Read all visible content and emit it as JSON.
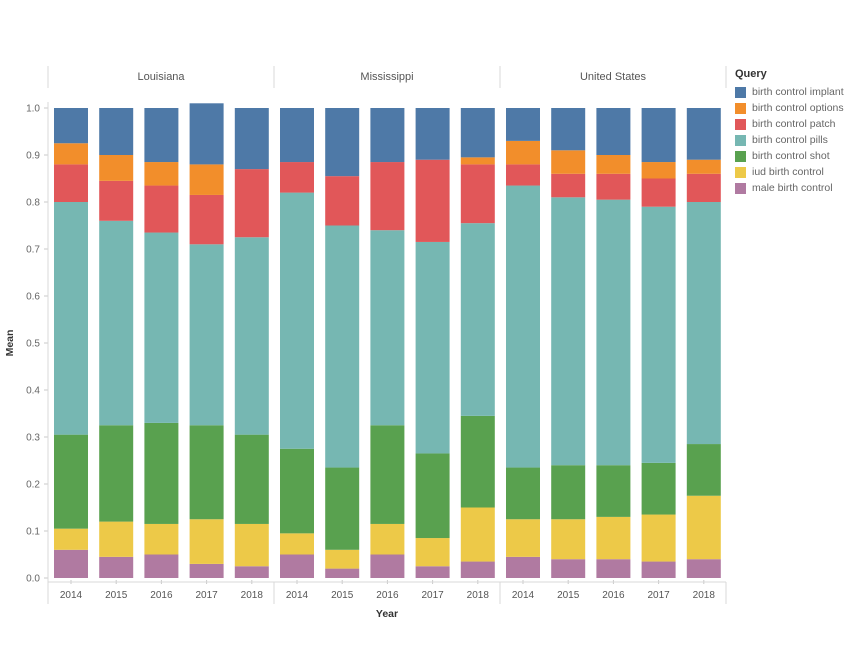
{
  "chart_data": {
    "type": "bar",
    "stacked": true,
    "ylabel": "Mean",
    "xlabel": "Year",
    "ylim": [
      0,
      1.0
    ],
    "y_ticks": [
      "0.0",
      "0.1",
      "0.2",
      "0.3",
      "0.4",
      "0.5",
      "0.6",
      "0.7",
      "0.8",
      "0.9",
      "1.0"
    ],
    "legend_title": "Query",
    "legend_position": "right",
    "categories": [
      "2014",
      "2015",
      "2016",
      "2017",
      "2018"
    ],
    "panels": [
      {
        "name": "Louisiana",
        "series": [
          {
            "name": "male birth control",
            "values": [
              0.06,
              0.045,
              0.05,
              0.03,
              0.025
            ]
          },
          {
            "name": "iud birth control",
            "values": [
              0.045,
              0.075,
              0.065,
              0.095,
              0.09
            ]
          },
          {
            "name": "birth control shot",
            "values": [
              0.2,
              0.205,
              0.215,
              0.2,
              0.19
            ]
          },
          {
            "name": "birth control pills",
            "values": [
              0.495,
              0.435,
              0.405,
              0.385,
              0.42
            ]
          },
          {
            "name": "birth control patch",
            "values": [
              0.08,
              0.085,
              0.1,
              0.105,
              0.145
            ]
          },
          {
            "name": "birth control options",
            "values": [
              0.045,
              0.055,
              0.05,
              0.065,
              0.0
            ]
          },
          {
            "name": "birth control implant",
            "values": [
              0.075,
              0.1,
              0.115,
              0.13,
              0.13
            ]
          }
        ]
      },
      {
        "name": "Mississippi",
        "series": [
          {
            "name": "male birth control",
            "values": [
              0.05,
              0.02,
              0.05,
              0.025,
              0.035
            ]
          },
          {
            "name": "iud birth control",
            "values": [
              0.045,
              0.04,
              0.065,
              0.06,
              0.115
            ]
          },
          {
            "name": "birth control shot",
            "values": [
              0.18,
              0.175,
              0.21,
              0.18,
              0.195
            ]
          },
          {
            "name": "birth control pills",
            "values": [
              0.545,
              0.515,
              0.415,
              0.45,
              0.41
            ]
          },
          {
            "name": "birth control patch",
            "values": [
              0.065,
              0.105,
              0.145,
              0.175,
              0.125
            ]
          },
          {
            "name": "birth control options",
            "values": [
              0.0,
              0.0,
              0.0,
              0.0,
              0.015
            ]
          },
          {
            "name": "birth control implant",
            "values": [
              0.115,
              0.145,
              0.115,
              0.11,
              0.105
            ]
          }
        ]
      },
      {
        "name": "United States",
        "series": [
          {
            "name": "male birth control",
            "values": [
              0.045,
              0.04,
              0.04,
              0.035,
              0.04
            ]
          },
          {
            "name": "iud birth control",
            "values": [
              0.08,
              0.085,
              0.09,
              0.1,
              0.135
            ]
          },
          {
            "name": "birth control shot",
            "values": [
              0.11,
              0.115,
              0.11,
              0.11,
              0.11
            ]
          },
          {
            "name": "birth control pills",
            "values": [
              0.6,
              0.57,
              0.565,
              0.545,
              0.515
            ]
          },
          {
            "name": "birth control patch",
            "values": [
              0.045,
              0.05,
              0.055,
              0.06,
              0.06
            ]
          },
          {
            "name": "birth control options",
            "values": [
              0.05,
              0.05,
              0.04,
              0.035,
              0.03
            ]
          },
          {
            "name": "birth control implant",
            "values": [
              0.07,
              0.09,
              0.1,
              0.115,
              0.11
            ]
          }
        ]
      }
    ],
    "legend": [
      {
        "name": "birth control implant",
        "color": "#4e79a7"
      },
      {
        "name": "birth control options",
        "color": "#f28e2b"
      },
      {
        "name": "birth control patch",
        "color": "#e15759"
      },
      {
        "name": "birth control pills",
        "color": "#76b7b2"
      },
      {
        "name": "birth control shot",
        "color": "#59a14f"
      },
      {
        "name": "iud birth control",
        "color": "#edc948"
      },
      {
        "name": "male birth control",
        "color": "#b07aa1"
      }
    ]
  }
}
